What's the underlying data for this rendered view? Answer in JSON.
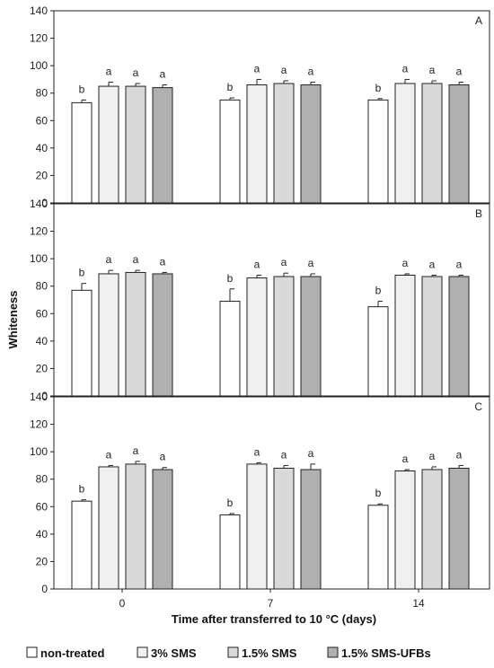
{
  "chart_data": {
    "type": "bar",
    "xlabel": "Time after transferred to 10 °C (days)",
    "ylabel": "Whiteness",
    "categories": [
      "0",
      "7",
      "14"
    ],
    "ylim": [
      0,
      140
    ],
    "yticks": [
      0,
      20,
      40,
      60,
      80,
      100,
      120,
      140
    ],
    "grid": false,
    "legend_position": "bottom",
    "series": [
      {
        "name": "non-treated",
        "color": "#ffffff"
      },
      {
        "name": "3% SMS",
        "color": "#f0f0f0"
      },
      {
        "name": "1.5% SMS",
        "color": "#d9d9d9"
      },
      {
        "name": "1.5% SMS-UFBs",
        "color": "#b0b0b0"
      }
    ],
    "panels": [
      {
        "label": "A",
        "values": [
          [
            73,
            85,
            85,
            84
          ],
          [
            75,
            86,
            87,
            86
          ],
          [
            75,
            87,
            87,
            86
          ]
        ],
        "errors": [
          [
            2,
            3,
            2,
            2
          ],
          [
            1.5,
            4,
            2,
            2
          ],
          [
            1,
            3,
            2,
            2
          ]
        ],
        "significance": [
          [
            "b",
            "a",
            "a",
            "a"
          ],
          [
            "b",
            "a",
            "a",
            "a"
          ],
          [
            "b",
            "a",
            "a",
            "a"
          ]
        ]
      },
      {
        "label": "B",
        "values": [
          [
            77,
            89,
            90,
            89
          ],
          [
            69,
            86,
            87,
            87
          ],
          [
            65,
            88,
            87,
            87
          ]
        ],
        "errors": [
          [
            5,
            2.5,
            1.5,
            1
          ],
          [
            9,
            2,
            2.5,
            2
          ],
          [
            4,
            1,
            1,
            1
          ]
        ],
        "significance": [
          [
            "b",
            "a",
            "a",
            "a"
          ],
          [
            "b",
            "a",
            "a",
            "a"
          ],
          [
            "b",
            "a",
            "a",
            "a"
          ]
        ]
      },
      {
        "label": "C",
        "values": [
          [
            64,
            89,
            91,
            87
          ],
          [
            54,
            91,
            88,
            87
          ],
          [
            61,
            86,
            87,
            88
          ]
        ],
        "errors": [
          [
            1,
            1,
            2,
            1.5
          ],
          [
            1,
            1,
            2,
            4
          ],
          [
            1,
            1,
            2,
            2
          ]
        ],
        "significance": [
          [
            "b",
            "a",
            "a",
            "a"
          ],
          [
            "b",
            "a",
            "a",
            "a"
          ],
          [
            "b",
            "a",
            "a",
            "a"
          ]
        ]
      }
    ]
  }
}
